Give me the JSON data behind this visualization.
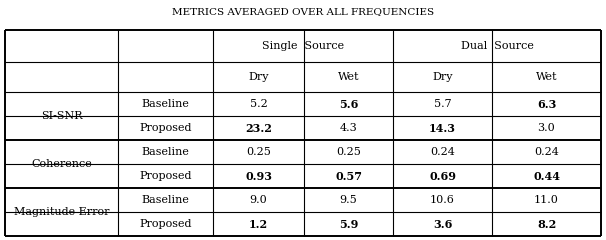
{
  "title": "METRICS AVERAGED OVER ALL FREQUENCIES",
  "title_fontsize": 7.5,
  "row_groups": [
    "SI-SNR",
    "Coherence",
    "Magnitude Error"
  ],
  "row_labels": [
    "Baseline",
    "Proposed",
    "Baseline",
    "Proposed",
    "Baseline",
    "Proposed"
  ],
  "data": [
    [
      "5.2",
      "5.6",
      "5.7",
      "6.3"
    ],
    [
      "23.2",
      "4.3",
      "14.3",
      "3.0"
    ],
    [
      "0.25",
      "0.25",
      "0.24",
      "0.24"
    ],
    [
      "0.93",
      "0.57",
      "0.69",
      "0.44"
    ],
    [
      "9.0",
      "9.5",
      "10.6",
      "11.0"
    ],
    [
      "1.2",
      "5.9",
      "3.6",
      "8.2"
    ]
  ],
  "bold": [
    [
      false,
      true,
      false,
      true
    ],
    [
      true,
      false,
      true,
      false
    ],
    [
      false,
      false,
      false,
      false
    ],
    [
      true,
      true,
      true,
      true
    ],
    [
      false,
      false,
      false,
      false
    ],
    [
      true,
      true,
      true,
      true
    ]
  ],
  "background_color": "#ffffff"
}
